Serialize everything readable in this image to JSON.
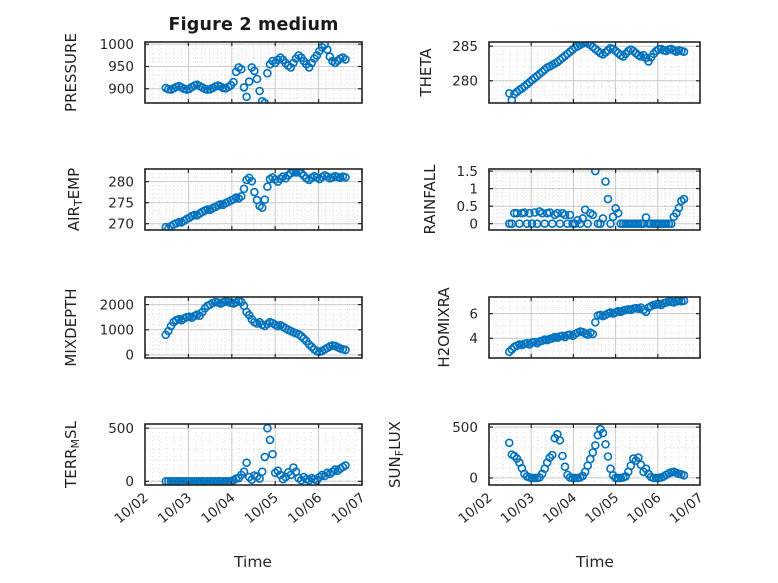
{
  "figure_title": "Figure 2 medium",
  "colors": {
    "marker": "#0072BD",
    "axis": "#242424",
    "tick_text": "#262626",
    "label_text": "#1f1f1f",
    "grid_major": "#c9c9c9",
    "grid_minor": "#dcdcdc",
    "background": "#ffffff"
  },
  "xaxis": {
    "label": "Time",
    "tick_labels": [
      "10/02",
      "10/03",
      "10/04",
      "10/05",
      "10/06",
      "10/07"
    ],
    "lim_days": [
      0,
      5
    ],
    "minor_divisions_per_day": 6
  },
  "chart_data": {
    "type": "scatter",
    "title": "Figure 2 medium",
    "xlabel": "Time",
    "x_unit": "days since 10/02 00:00",
    "marker": "open-circle",
    "grid": "major-solid + minor-dotted",
    "legend": "none",
    "x_tick_positions": [
      0,
      1,
      2,
      3,
      4,
      5
    ],
    "x_tick_labels": [
      "10/02",
      "10/03",
      "10/04",
      "10/05",
      "10/06",
      "10/07"
    ],
    "x": [
      0.48,
      0.54,
      0.6,
      0.66,
      0.72,
      0.78,
      0.84,
      0.9,
      0.96,
      1.02,
      1.08,
      1.14,
      1.2,
      1.26,
      1.32,
      1.38,
      1.44,
      1.5,
      1.56,
      1.62,
      1.68,
      1.74,
      1.8,
      1.86,
      1.92,
      1.98,
      2.04,
      2.1,
      2.16,
      2.22,
      2.28,
      2.34,
      2.4,
      2.46,
      2.52,
      2.58,
      2.64,
      2.7,
      2.76,
      2.82,
      2.88,
      2.94,
      3.0,
      3.06,
      3.12,
      3.18,
      3.24,
      3.3,
      3.36,
      3.42,
      3.48,
      3.54,
      3.6,
      3.66,
      3.72,
      3.78,
      3.84,
      3.9,
      3.96,
      4.02,
      4.08,
      4.14,
      4.2,
      4.26,
      4.32,
      4.38,
      4.44,
      4.5,
      4.56,
      4.62
    ],
    "series": [
      {
        "name": "PRESSURE",
        "label_segments": [
          {
            "t": "PRESSURE"
          }
        ],
        "yticks": [
          900,
          950,
          1000
        ],
        "ylim": [
          868,
          1005
        ],
        "y_minor_step": 10,
        "values": [
          902,
          899,
          898,
          901,
          904,
          906,
          903,
          900,
          898,
          900,
          904,
          907,
          909,
          906,
          903,
          900,
          898,
          899,
          902,
          905,
          907,
          905,
          902,
          901,
          904,
          908,
          915,
          938,
          948,
          944,
          903,
          882,
          916,
          948,
          940,
          922,
          895,
          872,
          868,
          935,
          955,
          962,
          958,
          965,
          970,
          965,
          958,
          952,
          948,
          958,
          968,
          975,
          970,
          962,
          955,
          948,
          958,
          968,
          975,
          985,
          993,
          999,
          988,
          972,
          962,
          958,
          963,
          968,
          970,
          966
        ]
      },
      {
        "name": "THETA",
        "label_segments": [
          {
            "t": "THETA"
          }
        ],
        "yticks": [
          280,
          285
        ],
        "ylim": [
          276.8,
          285.6
        ],
        "y_minor_step": 1,
        "values": [
          278.2,
          277.2,
          278.1,
          278.4,
          278.7,
          278.9,
          279.2,
          279.5,
          279.8,
          280.1,
          280.4,
          280.7,
          281.0,
          281.3,
          281.6,
          281.9,
          282.1,
          282.3,
          282.5,
          282.7,
          283.0,
          283.3,
          283.6,
          283.9,
          284.2,
          284.5,
          284.8,
          285.0,
          285.2,
          285.4,
          285.5,
          285.4,
          285.2,
          284.9,
          284.6,
          284.3,
          284.0,
          283.8,
          284.1,
          284.4,
          284.7,
          284.6,
          284.3,
          284.0,
          283.7,
          283.5,
          283.9,
          284.3,
          284.5,
          284.3,
          284.0,
          283.7,
          283.5,
          283.7,
          283.3,
          282.8,
          283.4,
          283.9,
          284.3,
          284.5,
          284.6,
          284.4,
          284.3,
          284.5,
          284.6,
          284.4,
          284.2,
          284.4,
          284.3,
          284.2
        ]
      },
      {
        "name": "AIR_TEMP",
        "label_segments": [
          {
            "t": "AIR"
          },
          {
            "t": "T",
            "sub": true
          },
          {
            "t": "EMP"
          }
        ],
        "yticks": [
          270,
          275,
          280
        ],
        "ylim": [
          268.5,
          283.0
        ],
        "y_minor_step": 1,
        "values": [
          269.2,
          268.9,
          269.4,
          269.8,
          270.1,
          270.4,
          270.3,
          270.7,
          271.1,
          271.4,
          271.8,
          272.1,
          272.0,
          272.4,
          272.8,
          273.1,
          273.4,
          273.3,
          273.7,
          274.0,
          274.3,
          274.6,
          274.5,
          274.9,
          275.2,
          275.5,
          275.8,
          276.2,
          276.0,
          276.5,
          278.3,
          280.4,
          280.9,
          280.1,
          277.5,
          275.6,
          274.2,
          273.8,
          275.7,
          278.8,
          280.6,
          281.0,
          280.5,
          280.0,
          280.7,
          281.2,
          280.8,
          281.5,
          282.0,
          282.4,
          282.2,
          282.5,
          282.0,
          281.4,
          280.8,
          280.4,
          280.9,
          281.3,
          281.0,
          280.6,
          281.1,
          281.5,
          281.2,
          280.8,
          281.0,
          281.3,
          281.1,
          280.9,
          281.2,
          281.0
        ]
      },
      {
        "name": "RAINFALL",
        "label_segments": [
          {
            "t": "RAINFALL"
          }
        ],
        "yticks": [
          0,
          0.5,
          1,
          1.5
        ],
        "ylim": [
          -0.18,
          1.56
        ],
        "y_minor_step": 0.1,
        "values": [
          0,
          0,
          0.3,
          0.3,
          0,
          0.3,
          0.32,
          0,
          0.3,
          0,
          0.32,
          0,
          0.35,
          0.3,
          0,
          0.3,
          0.32,
          0,
          0.25,
          0.3,
          0,
          0.3,
          0.25,
          0,
          0.25,
          0,
          0,
          0.1,
          0,
          0.15,
          0.4,
          0,
          0.3,
          0.25,
          1.5,
          0,
          0,
          0.15,
          1.2,
          0.7,
          0,
          0.2,
          0.44,
          0.3,
          0,
          0,
          0,
          0,
          0,
          0,
          0,
          0,
          0,
          0,
          0.18,
          0,
          0,
          0,
          0,
          0,
          0,
          0,
          0,
          0,
          0,
          0.2,
          0.3,
          0.45,
          0.65,
          0.7
        ]
      },
      {
        "name": "MIXDEPTH",
        "label_segments": [
          {
            "t": "MIXDEPTH"
          }
        ],
        "yticks": [
          0,
          1000,
          2000
        ],
        "ylim": [
          -120,
          2300
        ],
        "y_minor_step": 200,
        "values": [
          800,
          950,
          1150,
          1300,
          1380,
          1420,
          1380,
          1450,
          1500,
          1520,
          1480,
          1550,
          1600,
          1560,
          1700,
          1850,
          1950,
          2000,
          2060,
          2100,
          2080,
          2040,
          2090,
          2130,
          2100,
          2070,
          2040,
          2090,
          2140,
          2100,
          1950,
          1700,
          1580,
          1420,
          1300,
          1250,
          1300,
          1200,
          1150,
          1230,
          1300,
          1260,
          1200,
          1140,
          1180,
          1120,
          1060,
          1000,
          950,
          900,
          860,
          820,
          750,
          650,
          550,
          420,
          320,
          220,
          150,
          130,
          160,
          220,
          280,
          340,
          380,
          360,
          310,
          260,
          230,
          200
        ]
      },
      {
        "name": "H2OMIXRA",
        "label_segments": [
          {
            "t": "H2OMIXRA"
          }
        ],
        "yticks": [
          4,
          6
        ],
        "ylim": [
          2.4,
          7.35
        ],
        "y_minor_step": 0.5,
        "values": [
          2.9,
          3.1,
          3.3,
          3.4,
          3.5,
          3.45,
          3.55,
          3.6,
          3.5,
          3.65,
          3.7,
          3.6,
          3.75,
          3.8,
          3.9,
          3.85,
          3.95,
          4.0,
          4.1,
          4.05,
          4.15,
          4.2,
          4.1,
          4.25,
          4.3,
          4.2,
          4.35,
          4.45,
          4.55,
          4.5,
          4.4,
          4.3,
          4.45,
          4.35,
          5.3,
          5.85,
          5.9,
          5.8,
          5.9,
          6.0,
          6.1,
          6.0,
          6.1,
          6.2,
          6.15,
          6.25,
          6.3,
          6.35,
          6.3,
          6.4,
          6.45,
          6.4,
          6.5,
          6.3,
          6.15,
          6.5,
          6.6,
          6.7,
          6.75,
          6.8,
          6.7,
          6.85,
          6.9,
          7.0,
          6.95,
          6.9,
          7.0,
          7.05,
          7.0,
          7.05
        ]
      },
      {
        "name": "TERR_MSL",
        "label_segments": [
          {
            "t": "TERR"
          },
          {
            "t": "M",
            "sub": true
          },
          {
            "t": "SL"
          }
        ],
        "yticks": [
          0,
          500
        ],
        "ylim": [
          -35,
          540
        ],
        "y_minor_step": 100,
        "values": [
          0,
          0,
          0,
          0,
          0,
          0,
          0,
          0,
          0,
          0,
          0,
          0,
          0,
          0,
          0,
          0,
          0,
          0,
          0,
          0,
          0,
          0,
          0,
          0,
          0,
          0,
          10,
          25,
          30,
          60,
          90,
          175,
          40,
          15,
          55,
          45,
          25,
          90,
          230,
          500,
          390,
          255,
          80,
          100,
          60,
          20,
          40,
          85,
          60,
          130,
          90,
          30,
          10,
          40,
          20,
          10,
          30,
          20,
          10,
          40,
          60,
          50,
          80,
          70,
          90,
          110,
          100,
          120,
          135,
          150
        ]
      },
      {
        "name": "SUN_FLUX",
        "label_segments": [
          {
            "t": "SUN"
          },
          {
            "t": "F",
            "sub": true
          },
          {
            "t": "LUX"
          }
        ],
        "yticks": [
          0,
          500
        ],
        "ylim": [
          -70,
          530
        ],
        "y_minor_step": 100,
        "values": [
          345,
          230,
          215,
          190,
          150,
          95,
          40,
          15,
          5,
          0,
          0,
          0,
          5,
          40,
          90,
          150,
          200,
          225,
          390,
          430,
          370,
          215,
          110,
          30,
          5,
          0,
          0,
          0,
          5,
          20,
          60,
          120,
          185,
          250,
          320,
          420,
          480,
          440,
          330,
          210,
          90,
          25,
          0,
          0,
          0,
          5,
          15,
          60,
          120,
          190,
          170,
          200,
          130,
          60,
          90,
          40,
          10,
          0,
          0,
          0,
          5,
          15,
          30,
          45,
          55,
          60,
          50,
          40,
          35,
          25
        ]
      }
    ]
  }
}
